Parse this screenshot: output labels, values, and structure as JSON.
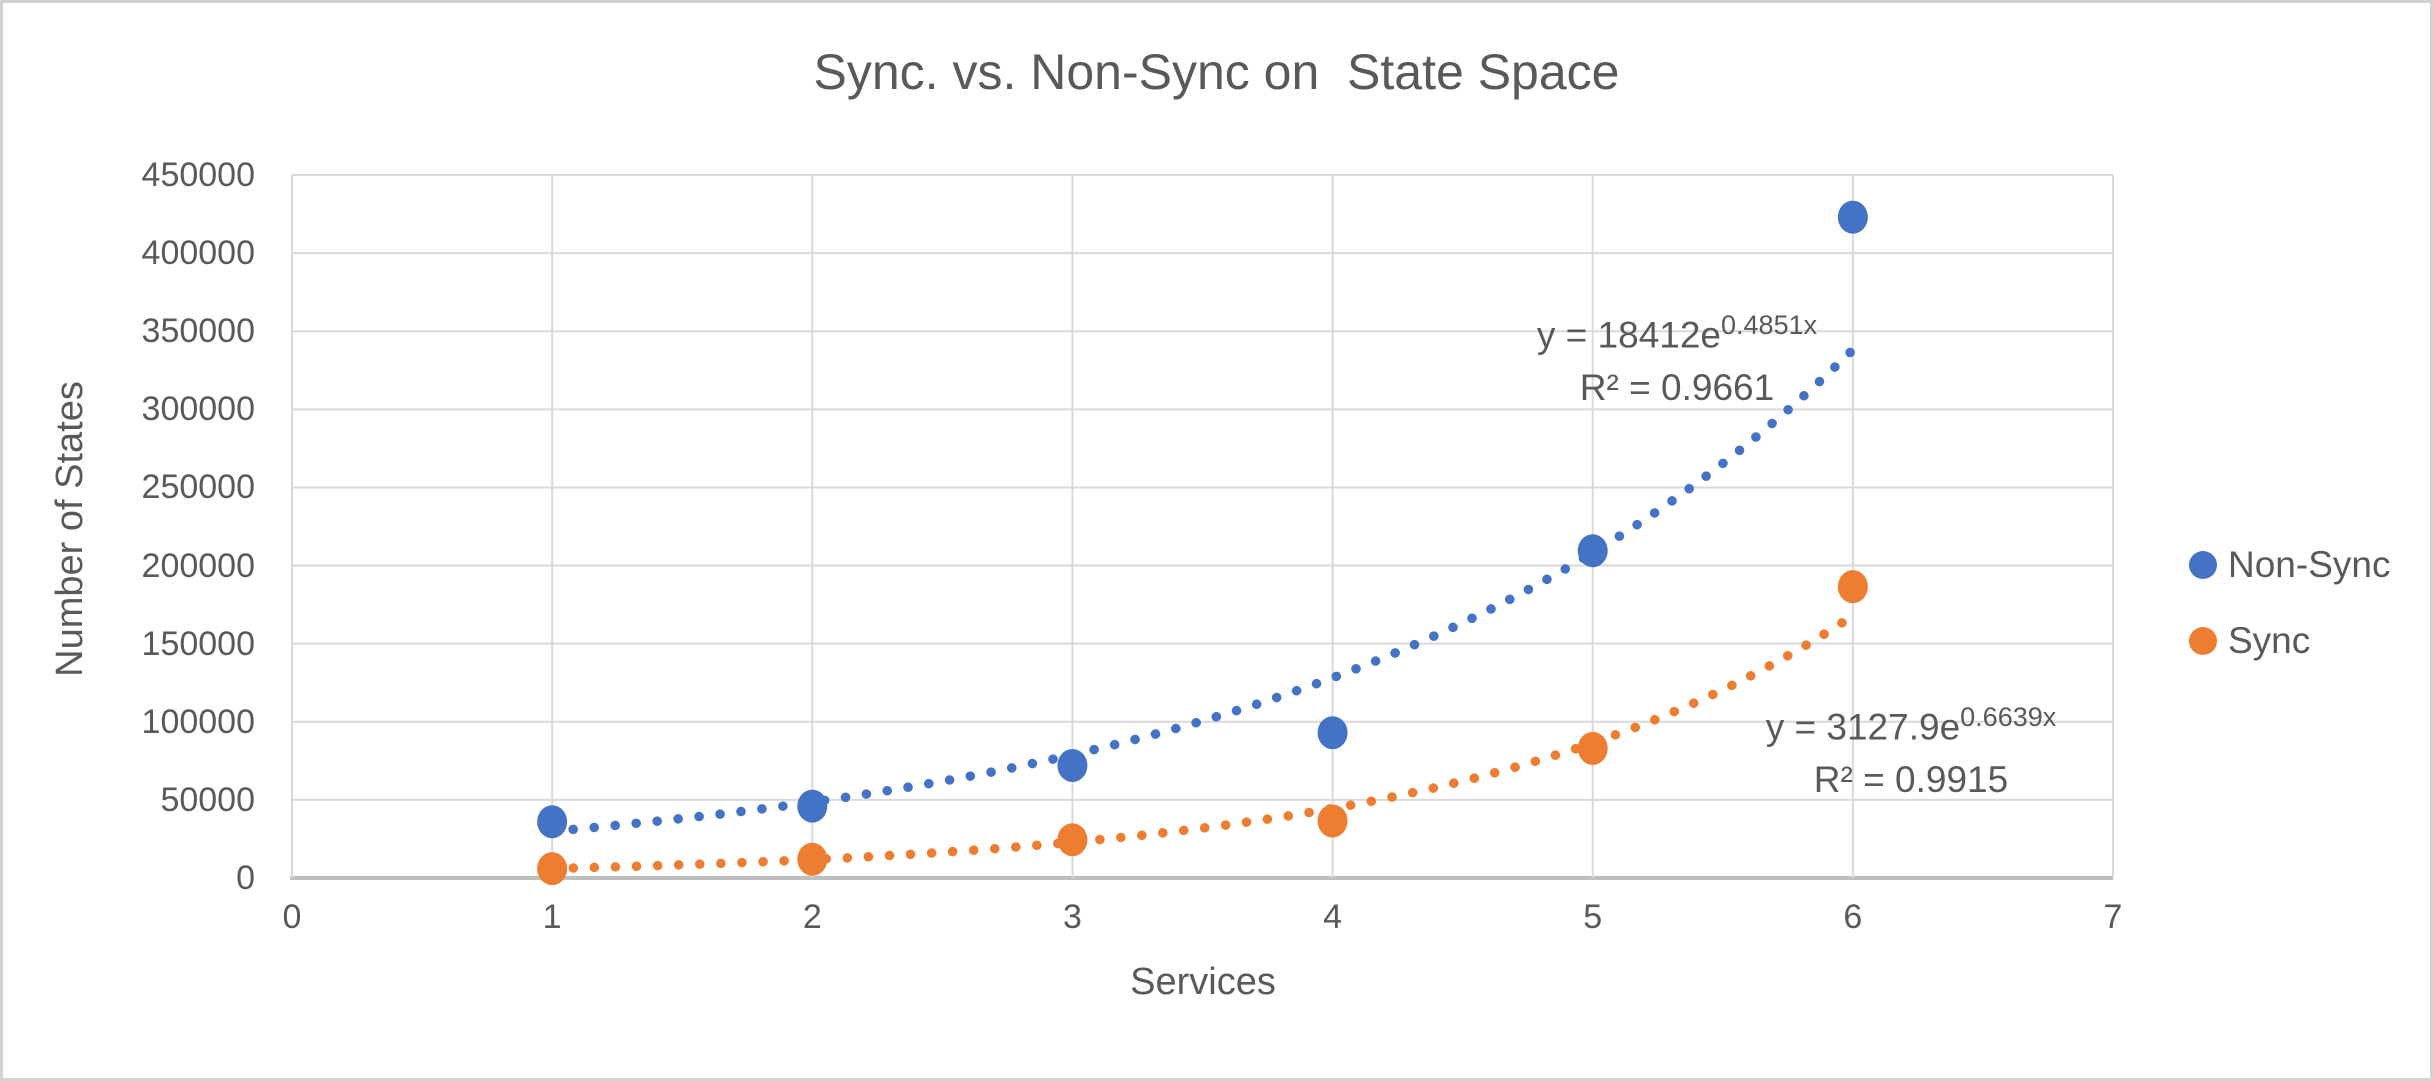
{
  "colors": {
    "background": "#FFFFFF",
    "outer_border": "#D2D2D2",
    "gridline": "#D9D9D9",
    "axis_line": "#BFBFBF",
    "text": "#595959",
    "nonsync_blue": "#4472C4",
    "sync_orange": "#ED7D31"
  },
  "chart_data": {
    "type": "scatter",
    "title": "Sync. vs. Non-Sync on  State Space",
    "xlabel": "Services",
    "ylabel": "Number of States",
    "xlim": [
      0,
      7
    ],
    "ylim": [
      0,
      450000
    ],
    "x_ticks": [
      "0",
      "1",
      "2",
      "3",
      "4",
      "5",
      "6",
      "7"
    ],
    "y_ticks": [
      "0",
      "50000",
      "100000",
      "150000",
      "200000",
      "250000",
      "300000",
      "350000",
      "400000",
      "450000"
    ],
    "grid": true,
    "legend_position": "right",
    "x": [
      1,
      2,
      3,
      4,
      5,
      6
    ],
    "series": [
      {
        "name": "Non-Sync",
        "color": "#4472C4",
        "values": [
          36000,
          46000,
          72000,
          93000,
          209500,
          423000
        ],
        "trendline": {
          "type": "exponential",
          "a": 18412,
          "b": 0.4851,
          "x_start": 1,
          "x_end": 6,
          "equation_prefix": "y = 18412e",
          "equation_exponent": "0.4851x",
          "r_squared_label": "R² = 0.9661"
        }
      },
      {
        "name": "Sync",
        "color": "#ED7D31",
        "values": [
          6000,
          12000,
          24500,
          36500,
          83000,
          186500
        ],
        "trendline": {
          "type": "exponential",
          "a": 3127.9,
          "b": 0.6639,
          "x_start": 1,
          "x_end": 6,
          "equation_prefix": "y = 3127.9e",
          "equation_exponent": "0.6639x",
          "r_squared_label": "R² = 0.9915"
        }
      }
    ]
  }
}
